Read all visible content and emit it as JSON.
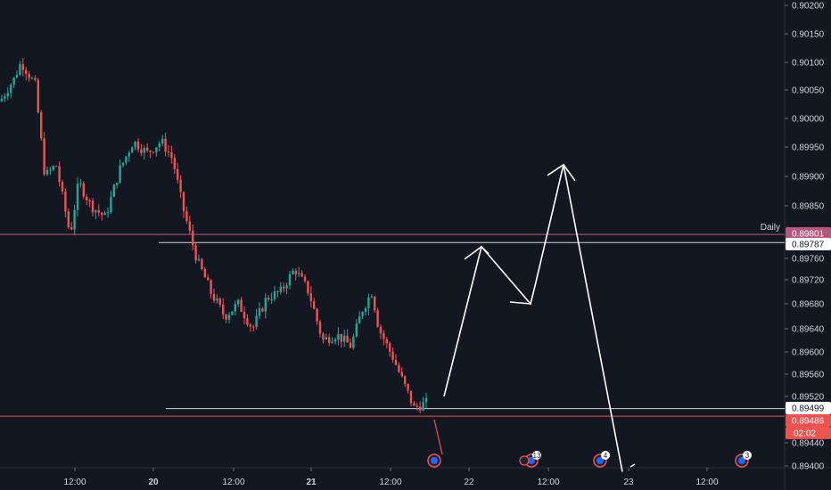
{
  "chart_data": {
    "type": "candlestick",
    "y_axis_ticks": [
      "0.90200",
      "0.90150",
      "0.90100",
      "0.90050",
      "0.90000",
      "0.89950",
      "0.89900",
      "0.89850",
      "0.89760",
      "0.89720",
      "0.89680",
      "0.89640",
      "0.89600",
      "0.89560",
      "0.89520",
      "0.89440",
      "0.89400"
    ],
    "x_axis_ticks": [
      {
        "label": "12:00",
        "bold": false
      },
      {
        "label": "20",
        "bold": true
      },
      {
        "label": "12:00",
        "bold": false
      },
      {
        "label": "21",
        "bold": true
      },
      {
        "label": "12:00",
        "bold": false
      },
      {
        "label": "22",
        "bold": false
      },
      {
        "label": "12:00",
        "bold": false
      },
      {
        "label": "23",
        "bold": false
      },
      {
        "label": "12:00",
        "bold": false
      }
    ],
    "series": [
      {
        "ohlc_path": [
          [
            0.0,
            0.9003
          ],
          [
            1.0,
            0.9007
          ],
          [
            1.5,
            0.901
          ],
          [
            2.5,
            0.9006
          ],
          [
            3.2,
            0.899
          ],
          [
            4.0,
            0.8992
          ],
          [
            5.0,
            0.898
          ],
          [
            5.6,
            0.8989
          ],
          [
            6.5,
            0.8985
          ],
          [
            7.5,
            0.8983
          ],
          [
            8.5,
            0.8991
          ],
          [
            9.5,
            0.8996
          ],
          [
            10.5,
            0.8994
          ],
          [
            11.5,
            0.8996
          ],
          [
            12.3,
            0.8993
          ],
          [
            13.0,
            0.8985
          ],
          [
            14.0,
            0.8976
          ],
          [
            15.0,
            0.897
          ],
          [
            16.0,
            0.8966
          ],
          [
            17.0,
            0.8968
          ],
          [
            18.0,
            0.8964
          ],
          [
            19.0,
            0.8969
          ],
          [
            20.0,
            0.897
          ],
          [
            21.0,
            0.8974
          ],
          [
            22.0,
            0.897
          ],
          [
            23.0,
            0.8962
          ],
          [
            24.0,
            0.8963
          ],
          [
            25.0,
            0.8961
          ],
          [
            25.8,
            0.8967
          ],
          [
            26.5,
            0.897
          ],
          [
            27.0,
            0.8964
          ],
          [
            28.0,
            0.8959
          ],
          [
            29.0,
            0.8953
          ],
          [
            29.5,
            0.895
          ],
          [
            30.5,
            0.8951
          ]
        ],
        "increasing_color": "#26a69a",
        "decreasing_color": "#ef5350"
      }
    ],
    "price_tags": [
      {
        "label": "0.89801",
        "bg": "#b5567b",
        "fg": "#ffffff",
        "value": 0.89801
      },
      {
        "label": "0.89787",
        "bg": "#ffffff",
        "fg": "#131722",
        "value": 0.89787
      },
      {
        "label": "0.89499",
        "bg": "#ffffff",
        "fg": "#131722",
        "value": 0.89499
      },
      {
        "label": "0.89486",
        "bg": "#ef5350",
        "fg": "#ffffff",
        "value": 0.89486
      },
      {
        "label": "02:02",
        "bg": "#ef5350",
        "fg": "#ffffff",
        "value": 0.89466
      }
    ],
    "horizontal_lines": [
      {
        "value": 0.89801,
        "color": "#b5567b",
        "label": "Daily"
      },
      {
        "value": 0.89787,
        "color": "#d1d4dc",
        "label": ""
      },
      {
        "value": 0.89499,
        "color": "#d1d4dc",
        "label": ""
      },
      {
        "value": 0.89486,
        "color": "#ef5350",
        "label": ""
      }
    ],
    "projection_path": [
      [
        0.8952,
        "start"
      ],
      [
        0.8978,
        "peak1"
      ],
      [
        0.8968,
        "dip"
      ],
      [
        0.8992,
        "peak2"
      ],
      [
        0.8939,
        "end"
      ]
    ],
    "event_markers": [
      {
        "label": "",
        "kind": "flag"
      },
      {
        "label": "13",
        "kind": "flag"
      },
      {
        "label": "4",
        "kind": "flag"
      },
      {
        "label": "3",
        "kind": "flag"
      }
    ],
    "colors": {
      "background": "#131722",
      "axis_text": "#d1d4dc",
      "up": "#26a69a",
      "down": "#ef5350",
      "projection": "#ffffff"
    }
  }
}
